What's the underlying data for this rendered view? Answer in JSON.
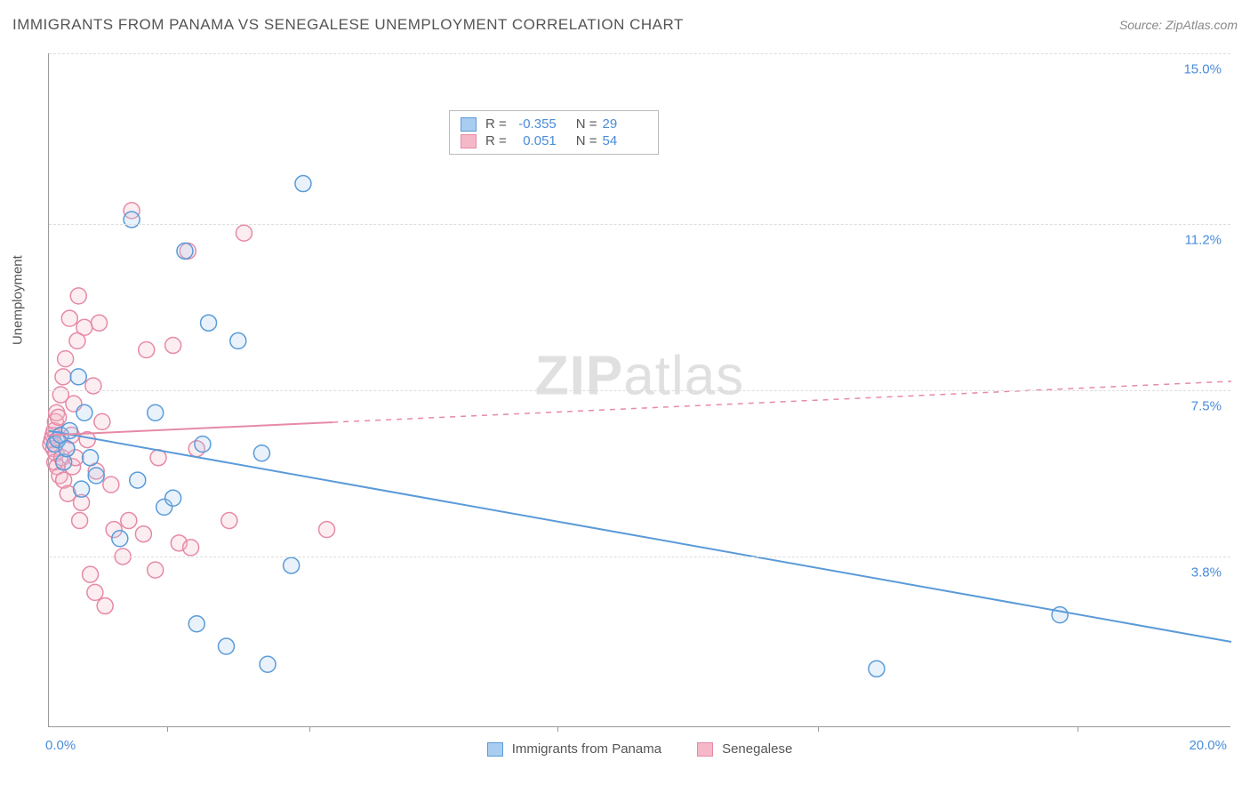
{
  "header": {
    "title": "IMMIGRANTS FROM PANAMA VS SENEGALESE UNEMPLOYMENT CORRELATION CHART",
    "source": "Source: ZipAtlas.com"
  },
  "watermark": {
    "zip": "ZIP",
    "atlas": "atlas"
  },
  "chart": {
    "type": "scatter",
    "ylabel": "Unemployment",
    "xlim": [
      0.0,
      20.0
    ],
    "ylim": [
      0.0,
      15.0
    ],
    "xlim_labels": [
      "0.0%",
      "20.0%"
    ],
    "ytick_values": [
      3.8,
      7.5,
      11.2,
      15.0
    ],
    "ytick_labels": [
      "3.8%",
      "7.5%",
      "11.2%",
      "15.0%"
    ],
    "xtick_values": [
      2.0,
      4.4,
      8.6,
      13.0,
      17.4
    ],
    "background_color": "#ffffff",
    "grid_color": "#dddddd",
    "marker_radius": 9,
    "marker_stroke_width": 1.5,
    "marker_fill_opacity": 0.25,
    "trend_line_width": 2,
    "series": [
      {
        "name": "Immigrants from Panama",
        "color_stroke": "#5a9bd8",
        "color_fill": "#a8cdf0",
        "R": "-0.355",
        "N": "29",
        "trend": {
          "x1": 0.0,
          "y1": 6.6,
          "x2": 20.0,
          "y2": 1.9,
          "dash_after_x": 20.0
        },
        "points": [
          [
            0.1,
            6.3
          ],
          [
            0.15,
            6.4
          ],
          [
            0.2,
            6.5
          ],
          [
            0.25,
            5.9
          ],
          [
            0.3,
            6.2
          ],
          [
            0.35,
            6.6
          ],
          [
            0.5,
            7.8
          ],
          [
            0.55,
            5.3
          ],
          [
            0.6,
            7.0
          ],
          [
            0.7,
            6.0
          ],
          [
            0.8,
            5.6
          ],
          [
            1.2,
            4.2
          ],
          [
            1.4,
            11.3
          ],
          [
            1.5,
            5.5
          ],
          [
            1.8,
            7.0
          ],
          [
            1.95,
            4.9
          ],
          [
            2.1,
            5.1
          ],
          [
            2.3,
            10.6
          ],
          [
            2.5,
            2.3
          ],
          [
            2.6,
            6.3
          ],
          [
            2.7,
            9.0
          ],
          [
            3.0,
            1.8
          ],
          [
            3.2,
            8.6
          ],
          [
            3.6,
            6.1
          ],
          [
            3.7,
            1.4
          ],
          [
            4.1,
            3.6
          ],
          [
            4.3,
            12.1
          ],
          [
            14.0,
            1.3
          ],
          [
            17.1,
            2.5
          ]
        ]
      },
      {
        "name": "Senegalese",
        "color_stroke": "#e68aa6",
        "color_fill": "#f5b8c8",
        "R": "0.051",
        "N": "54",
        "trend": {
          "x1": 0.0,
          "y1": 6.5,
          "x2": 20.0,
          "y2": 7.7,
          "dash_after_x": 4.8
        },
        "points": [
          [
            0.03,
            6.3
          ],
          [
            0.05,
            6.4
          ],
          [
            0.07,
            6.5
          ],
          [
            0.08,
            6.2
          ],
          [
            0.09,
            6.6
          ],
          [
            0.1,
            5.9
          ],
          [
            0.11,
            6.8
          ],
          [
            0.12,
            6.1
          ],
          [
            0.13,
            7.0
          ],
          [
            0.14,
            5.8
          ],
          [
            0.16,
            6.9
          ],
          [
            0.18,
            5.6
          ],
          [
            0.2,
            7.4
          ],
          [
            0.22,
            6.0
          ],
          [
            0.24,
            7.8
          ],
          [
            0.25,
            5.5
          ],
          [
            0.28,
            8.2
          ],
          [
            0.3,
            6.2
          ],
          [
            0.32,
            5.2
          ],
          [
            0.35,
            9.1
          ],
          [
            0.38,
            6.5
          ],
          [
            0.4,
            5.8
          ],
          [
            0.42,
            7.2
          ],
          [
            0.45,
            6.0
          ],
          [
            0.48,
            8.6
          ],
          [
            0.5,
            9.6
          ],
          [
            0.52,
            4.6
          ],
          [
            0.55,
            5.0
          ],
          [
            0.6,
            8.9
          ],
          [
            0.65,
            6.4
          ],
          [
            0.7,
            3.4
          ],
          [
            0.75,
            7.6
          ],
          [
            0.78,
            3.0
          ],
          [
            0.8,
            5.7
          ],
          [
            0.85,
            9.0
          ],
          [
            0.9,
            6.8
          ],
          [
            0.95,
            2.7
          ],
          [
            1.05,
            5.4
          ],
          [
            1.1,
            4.4
          ],
          [
            1.25,
            3.8
          ],
          [
            1.35,
            4.6
          ],
          [
            1.4,
            11.5
          ],
          [
            1.6,
            4.3
          ],
          [
            1.65,
            8.4
          ],
          [
            1.8,
            3.5
          ],
          [
            1.85,
            6.0
          ],
          [
            2.1,
            8.5
          ],
          [
            2.2,
            4.1
          ],
          [
            2.35,
            10.6
          ],
          [
            2.4,
            4.0
          ],
          [
            2.5,
            6.2
          ],
          [
            3.05,
            4.6
          ],
          [
            3.3,
            11.0
          ],
          [
            4.7,
            4.4
          ]
        ]
      }
    ],
    "legend": {
      "stats_labels": {
        "R": "R =",
        "N": "N ="
      }
    }
  }
}
